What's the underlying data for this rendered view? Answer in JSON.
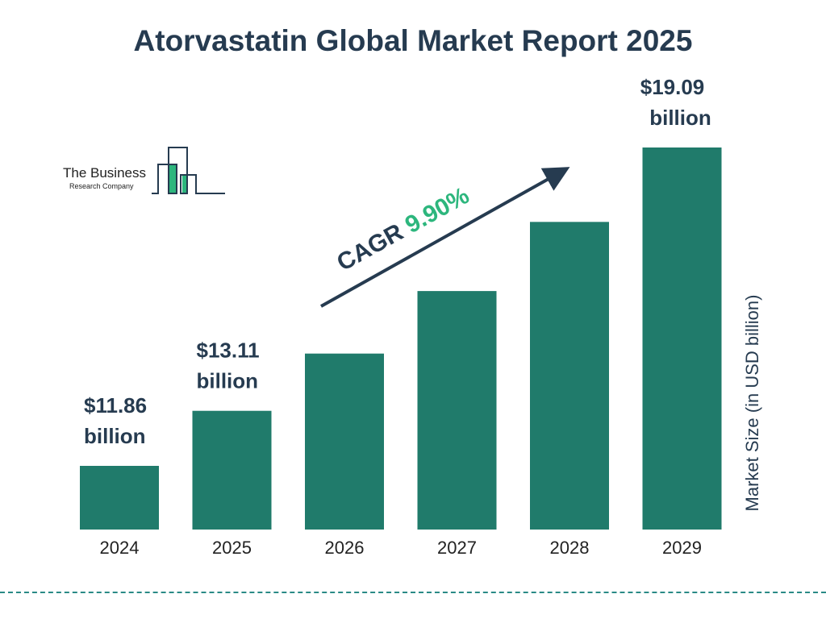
{
  "title": "Atorvastatin Global Market Report 2025",
  "logo": {
    "line1": "The Business",
    "line2": "Research Company"
  },
  "cagr": {
    "label": "CAGR",
    "value": "9.90%"
  },
  "colors": {
    "bar": "#207b6b",
    "title": "#263b50",
    "cagr": "#2db67d",
    "divider": "#2a8a86"
  },
  "chart_data": {
    "type": "bar",
    "title": "Atorvastatin Global Market Report 2025",
    "ylabel": "Market Size (in USD billion)",
    "xlabel": "",
    "categories": [
      "2024",
      "2025",
      "2026",
      "2027",
      "2028",
      "2029"
    ],
    "values": [
      11.86,
      13.11,
      14.41,
      15.83,
      17.4,
      19.09
    ],
    "data_labels": [
      "$11.86 billion",
      "$13.11 billion",
      "",
      "",
      "",
      "$19.09 billion"
    ],
    "grid": false,
    "legend": "none"
  }
}
